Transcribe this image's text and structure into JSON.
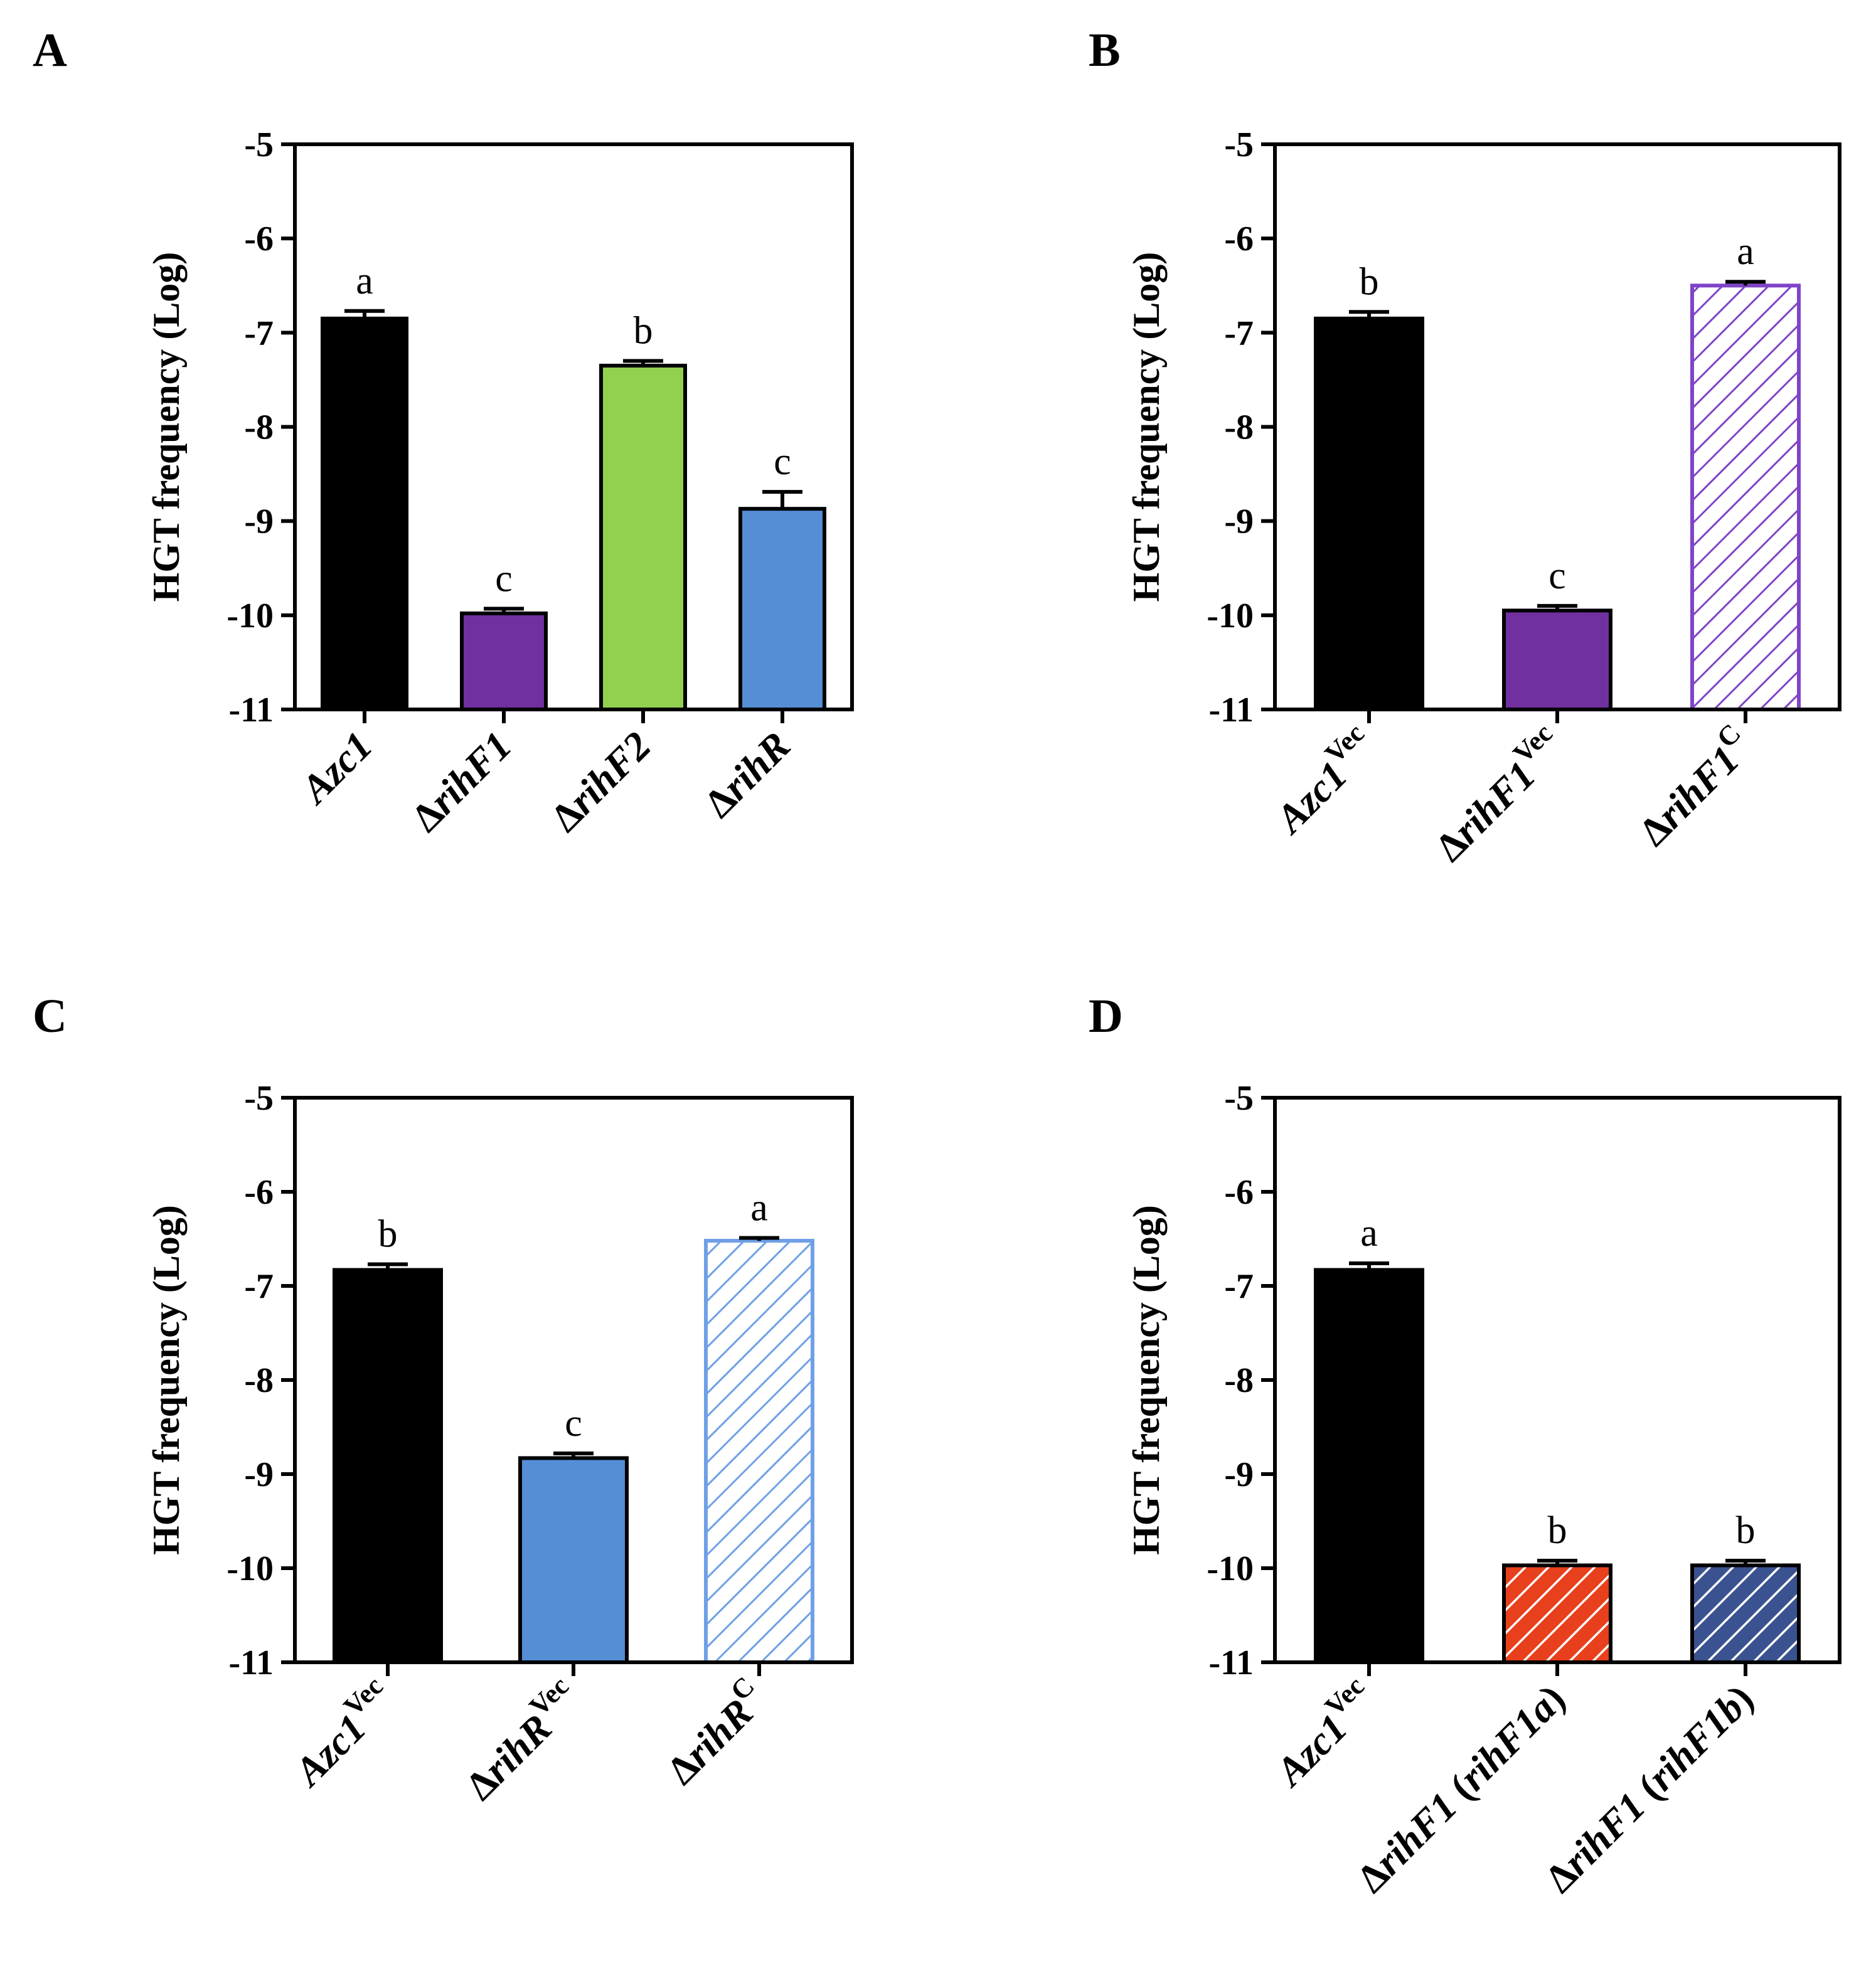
{
  "chart_data": [
    {
      "panel": "A",
      "type": "bar",
      "ylabel": "HGT frequency (Log)",
      "ylim": [
        -11,
        -5
      ],
      "yticks": [
        "-5",
        "-6",
        "-7",
        "-8",
        "-9",
        "-10",
        "-11"
      ],
      "bars": [
        {
          "label": [
            {
              "t": "Azc1",
              "it": true
            }
          ],
          "value": -6.85,
          "err": 0.08,
          "sig": "a",
          "color": "#000000",
          "pattern": "solid"
        },
        {
          "label": [
            {
              "t": "Δ",
              "it": false
            },
            {
              "t": "rihF1",
              "it": true
            }
          ],
          "value": -9.98,
          "err": 0.05,
          "sig": "c",
          "color": "#7030a0",
          "pattern": "solid"
        },
        {
          "label": [
            {
              "t": "Δ",
              "it": false
            },
            {
              "t": "rihF2",
              "it": true
            }
          ],
          "value": -7.35,
          "err": 0.05,
          "sig": "b",
          "color": "#92d050",
          "pattern": "solid"
        },
        {
          "label": [
            {
              "t": "Δ",
              "it": false
            },
            {
              "t": "rihR",
              "it": true
            }
          ],
          "value": -8.87,
          "err": 0.18,
          "sig": "c",
          "color": "#558ed5",
          "pattern": "solid"
        }
      ]
    },
    {
      "panel": "B",
      "type": "bar",
      "ylabel": "HGT frequency (Log)",
      "ylim": [
        -11,
        -5
      ],
      "yticks": [
        "-5",
        "-6",
        "-7",
        "-8",
        "-9",
        "-10",
        "-11"
      ],
      "bars": [
        {
          "label": [
            {
              "t": "Azc1",
              "it": true
            },
            {
              "t": "Vec",
              "sup": true
            }
          ],
          "value": -6.85,
          "err": 0.07,
          "sig": "b",
          "color": "#000000",
          "pattern": "solid"
        },
        {
          "label": [
            {
              "t": "Δ",
              "it": false
            },
            {
              "t": "rihF1",
              "it": true
            },
            {
              "t": "Vec",
              "sup": true
            }
          ],
          "value": -9.95,
          "err": 0.05,
          "sig": "c",
          "color": "#7030a0",
          "pattern": "solid"
        },
        {
          "label": [
            {
              "t": "Δ",
              "it": false
            },
            {
              "t": "rihF1",
              "it": true
            },
            {
              "t": "C",
              "sup": true
            }
          ],
          "value": -6.5,
          "err": 0.04,
          "sig": "a",
          "color": "#7f44c7",
          "pattern": "hatch"
        }
      ]
    },
    {
      "panel": "C",
      "type": "bar",
      "ylabel": "HGT frequency (Log)",
      "ylim": [
        -11,
        -5
      ],
      "yticks": [
        "-5",
        "-6",
        "-7",
        "-8",
        "-9",
        "-10",
        "-11"
      ],
      "bars": [
        {
          "label": [
            {
              "t": "Azc1",
              "it": true
            },
            {
              "t": "Vec",
              "sup": true
            }
          ],
          "value": -6.83,
          "err": 0.06,
          "sig": "b",
          "color": "#000000",
          "pattern": "solid"
        },
        {
          "label": [
            {
              "t": "Δ",
              "it": false
            },
            {
              "t": "rihR",
              "it": true
            },
            {
              "t": "Vec",
              "sup": true
            }
          ],
          "value": -8.83,
          "err": 0.05,
          "sig": "c",
          "color": "#558ed5",
          "pattern": "solid"
        },
        {
          "label": [
            {
              "t": "Δ",
              "it": false
            },
            {
              "t": "rihR",
              "it": true
            },
            {
              "t": "C",
              "sup": true
            }
          ],
          "value": -6.52,
          "err": 0.03,
          "sig": "a",
          "color": "#6fa0e6",
          "pattern": "hatch"
        }
      ]
    },
    {
      "panel": "D",
      "type": "bar",
      "ylabel": "HGT frequency (Log)",
      "ylim": [
        -11,
        -5
      ],
      "yticks": [
        "-5",
        "-6",
        "-7",
        "-8",
        "-9",
        "-10",
        "-11"
      ],
      "bars": [
        {
          "label": [
            {
              "t": "Azc1",
              "it": true
            },
            {
              "t": "Vec",
              "sup": true
            }
          ],
          "value": -6.83,
          "err": 0.07,
          "sig": "a",
          "color": "#000000",
          "pattern": "solid"
        },
        {
          "label": [
            {
              "t": "Δ",
              "it": false
            },
            {
              "t": "rihF1",
              "it": true
            },
            {
              "t": " (",
              "it": false
            },
            {
              "t": "rihF1a",
              "it": true
            },
            {
              "t": ")",
              "it": false
            }
          ],
          "value": -9.97,
          "err": 0.05,
          "sig": "b",
          "color": "#e8401c",
          "pattern": "hatch-filled"
        },
        {
          "label": [
            {
              "t": "Δ",
              "it": false
            },
            {
              "t": "rihF1",
              "it": true
            },
            {
              "t": " (",
              "it": false
            },
            {
              "t": "rihF1b",
              "it": true
            },
            {
              "t": ")",
              "it": false
            }
          ],
          "value": -9.97,
          "err": 0.05,
          "sig": "b",
          "color": "#3b5291",
          "pattern": "hatch-filled"
        }
      ]
    }
  ]
}
